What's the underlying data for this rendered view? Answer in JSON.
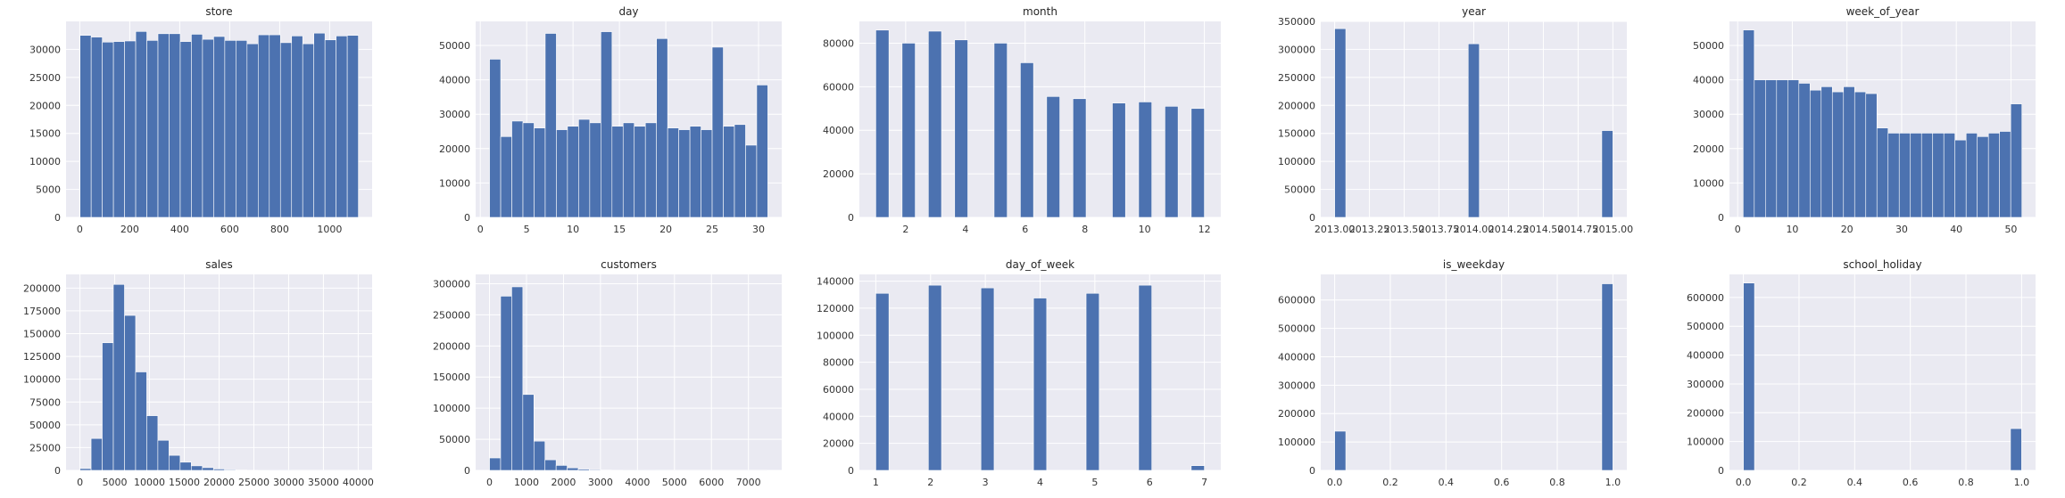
{
  "chart_data": [
    {
      "type": "bar",
      "title": "store",
      "bins": 25,
      "xlim": [
        -55,
        1170
      ],
      "ylim": [
        0,
        35000
      ],
      "xticks": [
        0,
        200,
        400,
        600,
        800,
        1000
      ],
      "xtick_labels": [
        "0",
        "200",
        "400",
        "600",
        "800",
        "1000"
      ],
      "yticks": [
        0,
        5000,
        10000,
        15000,
        20000,
        25000,
        30000
      ],
      "ytick_labels": [
        "0",
        "5000",
        "10000",
        "15000",
        "20000",
        "25000",
        "30000"
      ],
      "bin_edges": [
        1,
        45.56,
        90.12,
        134.68,
        179.24,
        223.8,
        268.36,
        312.92,
        357.48,
        402.04,
        446.6,
        491.16,
        535.72,
        580.28,
        624.84,
        669.4,
        713.96,
        758.52,
        803.08,
        847.64,
        892.2,
        936.76,
        981.32,
        1025.88,
        1070.44,
        1115
      ],
      "values": [
        32500,
        32200,
        31300,
        31400,
        31500,
        33200,
        31600,
        32800,
        32800,
        31400,
        32700,
        31800,
        32300,
        31600,
        31600,
        31000,
        32600,
        32600,
        31200,
        32400,
        31000,
        32900,
        31700,
        32400,
        32500
      ]
    },
    {
      "type": "bar",
      "title": "day",
      "bins": 25,
      "xlim": [
        -0.5,
        32.5
      ],
      "ylim": [
        0,
        57000
      ],
      "xticks": [
        0,
        5,
        10,
        15,
        20,
        25,
        30
      ],
      "xtick_labels": [
        "0",
        "5",
        "10",
        "15",
        "20",
        "25",
        "30"
      ],
      "yticks": [
        0,
        10000,
        20000,
        30000,
        40000,
        50000
      ],
      "ytick_labels": [
        "0",
        "10000",
        "20000",
        "30000",
        "40000",
        "50000"
      ],
      "bin_edges": [
        1,
        2.2,
        3.4,
        4.6,
        5.8,
        7,
        8.2,
        9.4,
        10.6,
        11.8,
        13,
        14.2,
        15.4,
        16.6,
        17.8,
        19,
        20.2,
        21.4,
        22.6,
        23.8,
        25,
        26.2,
        27.4,
        28.6,
        29.8,
        31
      ],
      "values": [
        46000,
        23500,
        28000,
        27500,
        26000,
        53500,
        25500,
        26500,
        28500,
        27500,
        54000,
        26500,
        27500,
        26500,
        27500,
        52000,
        26000,
        25500,
        26500,
        25500,
        49500,
        26500,
        27000,
        21000,
        38500
      ]
    },
    {
      "type": "bar",
      "title": "month",
      "bins": 25,
      "xlim": [
        0.45,
        12.55
      ],
      "ylim": [
        0,
        90000
      ],
      "xticks": [
        2,
        4,
        6,
        8,
        10,
        12
      ],
      "xtick_labels": [
        "2",
        "4",
        "6",
        "8",
        "10",
        "12"
      ],
      "yticks": [
        0,
        20000,
        40000,
        60000,
        80000
      ],
      "ytick_labels": [
        "0",
        "20000",
        "40000",
        "60000",
        "80000"
      ],
      "bin_edges": [
        1,
        1.44,
        1.88,
        2.32,
        2.76,
        3.2,
        3.64,
        4.08,
        4.52,
        4.96,
        5.4,
        5.84,
        6.28,
        6.72,
        7.16,
        7.6,
        8.04,
        8.48,
        8.92,
        9.36,
        9.8,
        10.24,
        10.68,
        11.12,
        11.56,
        12
      ],
      "values": [
        86000,
        0,
        80000,
        0,
        85500,
        0,
        81500,
        0,
        0,
        80000,
        0,
        71000,
        0,
        55500,
        0,
        54500,
        0,
        0,
        52500,
        0,
        53000,
        0,
        51000,
        0,
        50000
      ]
    },
    {
      "type": "bar",
      "title": "year",
      "bins": 25,
      "xlim": [
        2012.9,
        2015.1
      ],
      "ylim": [
        0,
        350000
      ],
      "xticks": [
        2013.0,
        2013.25,
        2013.5,
        2013.75,
        2014.0,
        2014.25,
        2014.5,
        2014.75,
        2015.0
      ],
      "xtick_labels": [
        "2013.00",
        "2013.25",
        "2013.50",
        "2013.75",
        "2014.00",
        "2014.25",
        "2014.50",
        "2014.75",
        "2015.00"
      ],
      "yticks": [
        0,
        50000,
        100000,
        150000,
        200000,
        250000,
        300000,
        350000
      ],
      "ytick_labels": [
        "0",
        "50000",
        "100000",
        "150000",
        "200000",
        "250000",
        "300000",
        "350000"
      ],
      "bin_edges": [
        2013,
        2013.08,
        2013.16,
        2013.24,
        2013.32,
        2013.4,
        2013.48,
        2013.56,
        2013.64,
        2013.72,
        2013.8,
        2013.88,
        2013.96,
        2014.04,
        2014.12,
        2014.2,
        2014.28,
        2014.36,
        2014.44,
        2014.52,
        2014.6,
        2014.68,
        2014.76,
        2014.84,
        2014.92,
        2015
      ],
      "values": [
        337000,
        0,
        0,
        0,
        0,
        0,
        0,
        0,
        0,
        0,
        0,
        0,
        310000,
        0,
        0,
        0,
        0,
        0,
        0,
        0,
        0,
        0,
        0,
        0,
        155000
      ]
    },
    {
      "type": "bar",
      "title": "week_of_year",
      "bins": 25,
      "xlim": [
        -1.5,
        54.5
      ],
      "ylim": [
        0,
        57000
      ],
      "xticks": [
        0,
        10,
        20,
        30,
        40,
        50
      ],
      "xtick_labels": [
        "0",
        "10",
        "20",
        "30",
        "40",
        "50"
      ],
      "yticks": [
        0,
        10000,
        20000,
        30000,
        40000,
        50000
      ],
      "ytick_labels": [
        "0",
        "10000",
        "20000",
        "30000",
        "40000",
        "50000"
      ],
      "bin_edges": [
        1,
        3.04,
        5.08,
        7.12,
        9.16,
        11.2,
        13.24,
        15.28,
        17.32,
        19.36,
        21.4,
        23.44,
        25.48,
        27.52,
        29.56,
        31.6,
        33.64,
        35.68,
        37.72,
        39.76,
        41.8,
        43.84,
        45.88,
        47.92,
        49.96,
        52
      ],
      "values": [
        54500,
        40000,
        40000,
        40000,
        40000,
        39000,
        37000,
        38000,
        36500,
        38000,
        36500,
        36000,
        26000,
        24500,
        24500,
        24500,
        24500,
        24500,
        24500,
        22500,
        24500,
        23500,
        24500,
        25000,
        33000
      ]
    },
    {
      "type": "bar",
      "title": "sales",
      "bins": 25,
      "xlim": [
        -2000,
        42000
      ],
      "ylim": [
        0,
        215000
      ],
      "xticks": [
        0,
        5000,
        10000,
        15000,
        20000,
        25000,
        30000,
        35000,
        40000
      ],
      "xtick_labels": [
        "0",
        "5000",
        "10000",
        "15000",
        "20000",
        "25000",
        "30000",
        "35000",
        "40000"
      ],
      "yticks": [
        0,
        25000,
        50000,
        75000,
        100000,
        125000,
        150000,
        175000,
        200000
      ],
      "ytick_labels": [
        "0",
        "25000",
        "50000",
        "75000",
        "100000",
        "125000",
        "150000",
        "175000",
        "200000"
      ],
      "bin_edges": [
        0,
        1600,
        3200,
        4800,
        6400,
        8000,
        9600,
        11200,
        12800,
        14400,
        16000,
        17600,
        19200,
        20800,
        22400,
        24000,
        25600,
        27200,
        28800,
        30400,
        32000,
        33600,
        35200,
        36800,
        38400,
        40000
      ],
      "values": [
        2000,
        35000,
        140000,
        204000,
        170000,
        108000,
        60000,
        33000,
        16500,
        9000,
        5000,
        3000,
        1500,
        800,
        400,
        200,
        100,
        50,
        30,
        20,
        10,
        5,
        5,
        5,
        5
      ]
    },
    {
      "type": "bar",
      "title": "customers",
      "bins": 25,
      "xlim": [
        -375,
        7900
      ],
      "ylim": [
        0,
        315000
      ],
      "xticks": [
        0,
        1000,
        2000,
        3000,
        4000,
        5000,
        6000,
        7000
      ],
      "xtick_labels": [
        "0",
        "1000",
        "2000",
        "3000",
        "4000",
        "5000",
        "6000",
        "7000"
      ],
      "yticks": [
        0,
        50000,
        100000,
        150000,
        200000,
        250000,
        300000
      ],
      "ytick_labels": [
        "0",
        "50000",
        "100000",
        "150000",
        "200000",
        "250000",
        "300000"
      ],
      "bin_edges": [
        0,
        300,
        600,
        900,
        1200,
        1500,
        1800,
        2100,
        2400,
        2700,
        3000,
        3300,
        3600,
        3900,
        4200,
        4500,
        4800,
        5100,
        5400,
        5700,
        6000,
        6300,
        6600,
        6900,
        7200,
        7500
      ],
      "values": [
        20000,
        280000,
        295000,
        122000,
        47000,
        17000,
        8000,
        4000,
        2000,
        1200,
        600,
        300,
        150,
        100,
        50,
        30,
        20,
        10,
        5,
        5,
        5,
        5,
        5,
        5,
        5
      ]
    },
    {
      "type": "bar",
      "title": "day_of_week",
      "bins": 25,
      "xlim": [
        0.7,
        7.3
      ],
      "ylim": [
        0,
        145000
      ],
      "xticks": [
        1,
        2,
        3,
        4,
        5,
        6,
        7
      ],
      "xtick_labels": [
        "1",
        "2",
        "3",
        "4",
        "5",
        "6",
        "7"
      ],
      "yticks": [
        0,
        20000,
        40000,
        60000,
        80000,
        100000,
        120000,
        140000
      ],
      "ytick_labels": [
        "0",
        "20000",
        "40000",
        "60000",
        "80000",
        "100000",
        "120000",
        "140000"
      ],
      "bin_edges": [
        1,
        1.24,
        1.48,
        1.72,
        1.96,
        2.2,
        2.44,
        2.68,
        2.92,
        3.16,
        3.4,
        3.64,
        3.88,
        4.12,
        4.36,
        4.6,
        4.84,
        5.08,
        5.32,
        5.56,
        5.8,
        6.04,
        6.28,
        6.52,
        6.76,
        7
      ],
      "values": [
        131000,
        0,
        0,
        0,
        137000,
        0,
        0,
        0,
        135000,
        0,
        0,
        0,
        127500,
        0,
        0,
        0,
        131000,
        0,
        0,
        0,
        137000,
        0,
        0,
        0,
        3500
      ]
    },
    {
      "type": "bar",
      "title": "is_weekday",
      "bins": 25,
      "xlim": [
        -0.05,
        1.05
      ],
      "ylim": [
        0,
        690000
      ],
      "xticks": [
        0.0,
        0.2,
        0.4,
        0.6,
        0.8,
        1.0
      ],
      "xtick_labels": [
        "0.0",
        "0.2",
        "0.4",
        "0.6",
        "0.8",
        "1.0"
      ],
      "yticks": [
        0,
        100000,
        200000,
        300000,
        400000,
        500000,
        600000
      ],
      "ytick_labels": [
        "0",
        "100000",
        "200000",
        "300000",
        "400000",
        "500000",
        "600000"
      ],
      "bin_edges": [
        0,
        0.04,
        0.08,
        0.12,
        0.16,
        0.2,
        0.24,
        0.28,
        0.32,
        0.36,
        0.4,
        0.44,
        0.48,
        0.52,
        0.56,
        0.6,
        0.64,
        0.68,
        0.72,
        0.76,
        0.8,
        0.84,
        0.88,
        0.92,
        0.96,
        1
      ],
      "values": [
        138000,
        0,
        0,
        0,
        0,
        0,
        0,
        0,
        0,
        0,
        0,
        0,
        0,
        0,
        0,
        0,
        0,
        0,
        0,
        0,
        0,
        0,
        0,
        0,
        657000
      ]
    },
    {
      "type": "bar",
      "title": "school_holiday",
      "bins": 25,
      "xlim": [
        -0.05,
        1.05
      ],
      "ylim": [
        0,
        680000
      ],
      "xticks": [
        0.0,
        0.2,
        0.4,
        0.6,
        0.8,
        1.0
      ],
      "xtick_labels": [
        "0.0",
        "0.2",
        "0.4",
        "0.6",
        "0.8",
        "1.0"
      ],
      "yticks": [
        0,
        100000,
        200000,
        300000,
        400000,
        500000,
        600000
      ],
      "ytick_labels": [
        "0",
        "100000",
        "200000",
        "300000",
        "400000",
        "500000",
        "600000"
      ],
      "bin_edges": [
        0,
        0.04,
        0.08,
        0.12,
        0.16,
        0.2,
        0.24,
        0.28,
        0.32,
        0.36,
        0.4,
        0.44,
        0.48,
        0.52,
        0.56,
        0.6,
        0.64,
        0.68,
        0.72,
        0.76,
        0.8,
        0.84,
        0.88,
        0.92,
        0.96,
        1
      ],
      "values": [
        650000,
        0,
        0,
        0,
        0,
        0,
        0,
        0,
        0,
        0,
        0,
        0,
        0,
        0,
        0,
        0,
        0,
        0,
        0,
        0,
        0,
        0,
        0,
        0,
        145000
      ]
    }
  ]
}
